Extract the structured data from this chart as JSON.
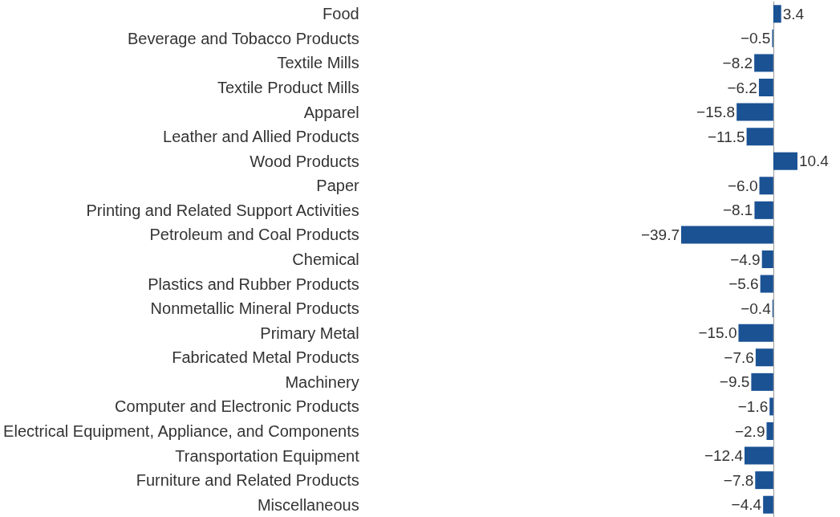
{
  "chart_data": {
    "type": "bar",
    "orientation": "horizontal",
    "categories": [
      "Food",
      "Beverage and Tobacco Products",
      "Textile Mills",
      "Textile Product Mills",
      "Apparel",
      "Leather and Allied Products",
      "Wood Products",
      "Paper",
      "Printing and Related Support Activities",
      "Petroleum and Coal Products",
      "Chemical",
      "Plastics and Rubber Products",
      "Nonmetallic Mineral Products",
      "Primary Metal",
      "Fabricated Metal Products",
      "Machinery",
      "Computer and Electronic Products",
      "Electrical Equipment, Appliance, and Components",
      "Transportation Equipment",
      "Furniture and Related Products",
      "Miscellaneous"
    ],
    "values": [
      3.4,
      -0.5,
      -8.2,
      -6.2,
      -15.8,
      -11.5,
      10.4,
      -6.0,
      -8.1,
      -39.7,
      -4.9,
      -5.6,
      -0.4,
      -15.0,
      -7.6,
      -9.5,
      -1.6,
      -2.9,
      -12.4,
      -7.8,
      -4.4
    ],
    "value_labels": [
      "3.4",
      "−0.5",
      "−8.2",
      "−6.2",
      "−15.8",
      "−11.5",
      "10.4",
      "−6.0",
      "−8.1",
      "−39.7",
      "−4.9",
      "−5.6",
      "−0.4",
      "−15.0",
      "−7.6",
      "−9.5",
      "−1.6",
      "−2.9",
      "−12.4",
      "−7.8",
      "−4.4"
    ],
    "color": "#1a5294"
  }
}
